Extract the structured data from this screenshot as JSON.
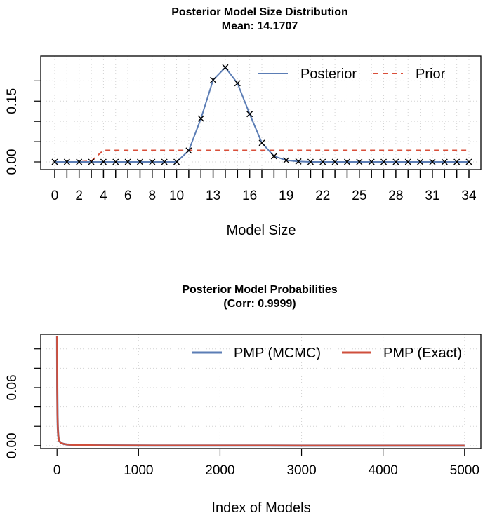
{
  "chart_data": [
    {
      "type": "line",
      "title": "Posterior Model Size Distribution",
      "subtitle": "Mean: 14.1707",
      "xlabel": "Model Size",
      "ylabel": "",
      "xlim": [
        0,
        34
      ],
      "ylim": [
        0,
        0.23
      ],
      "x_tick_labels": [
        "0",
        "2",
        "4",
        "6",
        "8",
        "10",
        "13",
        "16",
        "19",
        "22",
        "25",
        "28",
        "31",
        "34"
      ],
      "y_tick_labels": [
        "0.00",
        "0.15"
      ],
      "y_ticks": [
        0,
        0.05,
        0.1,
        0.15,
        0.2
      ],
      "grid": true,
      "legend_position": "top-right",
      "x": [
        0,
        1,
        2,
        3,
        4,
        5,
        6,
        7,
        8,
        9,
        10,
        11,
        12,
        13,
        14,
        15,
        16,
        17,
        18,
        19,
        20,
        21,
        22,
        23,
        24,
        25,
        26,
        27,
        28,
        29,
        30,
        31,
        32,
        33,
        34
      ],
      "series": [
        {
          "name": "Posterior",
          "style": "solid",
          "color": "#5b7db5",
          "markers": "x",
          "values": [
            0,
            0,
            0,
            0,
            0,
            0,
            0,
            0,
            0,
            0,
            0,
            0.028,
            0.107,
            0.202,
            0.233,
            0.194,
            0.118,
            0.047,
            0.014,
            0.004,
            0.001,
            0,
            0,
            0,
            0,
            0,
            0,
            0,
            0,
            0,
            0,
            0,
            0,
            0,
            0
          ]
        },
        {
          "name": "Prior",
          "style": "dashed",
          "color": "#d94f3a",
          "values": [
            0,
            0,
            0,
            0.002,
            0.0286,
            0.0286,
            0.0286,
            0.0286,
            0.0286,
            0.0286,
            0.0286,
            0.0286,
            0.0286,
            0.0286,
            0.0286,
            0.0286,
            0.0286,
            0.0286,
            0.0286,
            0.0286,
            0.0286,
            0.0286,
            0.0286,
            0.0286,
            0.0286,
            0.0286,
            0.0286,
            0.0286,
            0.0286,
            0.0286,
            0.0286,
            0.0286,
            0.0286,
            0.0286,
            0.0286
          ]
        }
      ]
    },
    {
      "type": "line",
      "title": "Posterior Model Probabilities",
      "subtitle": "(Corr: 0.9999)",
      "xlabel": "Index of Models",
      "ylabel": "",
      "xlim": [
        -200,
        5200
      ],
      "ylim": [
        -0.003,
        0.115
      ],
      "x_ticks": [
        0,
        1000,
        2000,
        3000,
        4000,
        5000
      ],
      "x_tick_labels": [
        "0",
        "1000",
        "2000",
        "3000",
        "4000",
        "5000"
      ],
      "y_tick_labels": [
        "0.00",
        "0.06"
      ],
      "y_ticks": [
        0,
        0.02,
        0.04,
        0.06,
        0.08,
        0.1
      ],
      "grid": true,
      "legend_position": "top-right",
      "series": [
        {
          "name": "PMP (MCMC)",
          "style": "solid",
          "color": "#5b7db5",
          "x": [
            1,
            3,
            6,
            10,
            15,
            20,
            30,
            50,
            80,
            120,
            200,
            350,
            500,
            800,
            1200,
            2000,
            3000,
            4000,
            5000
          ],
          "values": [
            0.113,
            0.06,
            0.032,
            0.018,
            0.011,
            0.007,
            0.0045,
            0.0028,
            0.0018,
            0.0012,
            0.0008,
            0.0005,
            0.0003,
            0.00015,
            0.0001,
            5e-05,
            3e-05,
            2e-05,
            1e-05
          ]
        },
        {
          "name": "PMP (Exact)",
          "style": "solid",
          "color": "#cf4f3c",
          "x": [
            1,
            3,
            6,
            10,
            15,
            20,
            30,
            50,
            80,
            120,
            200,
            350,
            500,
            800,
            1200,
            2000,
            3000,
            4000,
            5000
          ],
          "values": [
            0.113,
            0.06,
            0.032,
            0.018,
            0.011,
            0.007,
            0.0045,
            0.0028,
            0.0018,
            0.0012,
            0.0008,
            0.0005,
            0.0003,
            0.00015,
            0.0001,
            5e-05,
            3e-05,
            2e-05,
            1e-05
          ]
        }
      ]
    }
  ]
}
